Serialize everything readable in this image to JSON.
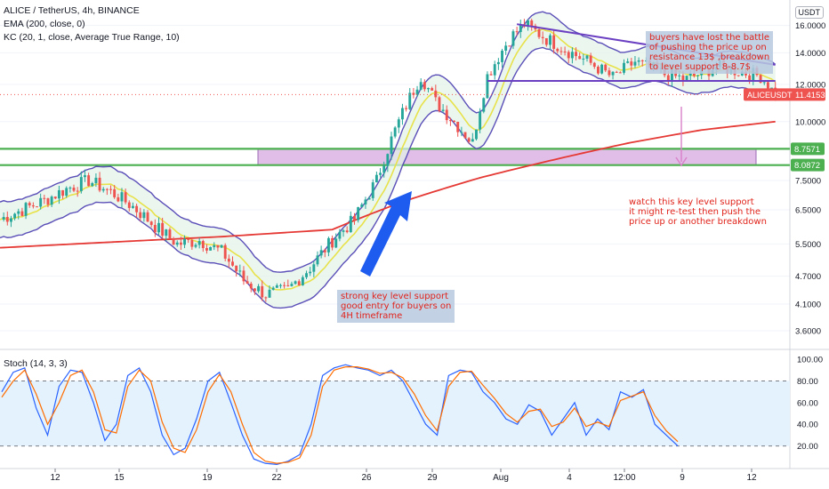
{
  "header": {
    "symbol_line": "ALICE / TetherUS, 4h, BINANCE",
    "ema_line": "EMA (200, close, 0)",
    "kc_line": "KC (20, 1, close, Average True Range, 10)",
    "stoch_line": "Stoch (14, 3, 3)",
    "currency": "USDT"
  },
  "notes": {
    "top_right": "buyers have lost the battle\nof pushing the price up on\nresistance 13$ ,breakdown\nto level support 8-8.7$",
    "middle_right": "watch this key level support\nit might re-test then push the\nprice up or another breakdown",
    "bottom_center": "strong key level support\ngood entry for buyers on\n4H timeframe"
  },
  "colors": {
    "bull": "#26a69a",
    "bear": "#ef5350",
    "ema": "#e53935",
    "kc_band": "#5b4fb8",
    "kc_mid": "#e8e24a",
    "kc_fill": "#e3f2e8",
    "support_line": "#4caf50",
    "zone_fill": "#e1bee7",
    "trendline": "#6a3fc2",
    "arrow_blue": "#1e5bef",
    "arrow_pink": "#d980c9",
    "stoch_k": "#2962ff",
    "stoch_d": "#ff6d00",
    "stoch_bg": "#e3f2fd",
    "price_tag": "#ef5350",
    "level_tag": "#4caf50"
  },
  "chart_data": [
    {
      "type": "candlestick",
      "symbol": "ALICEUSDT",
      "price_axis_ticks": [
        "16.0000",
        "14.0000",
        "12.0000",
        "10.0000",
        "8.7571",
        "8.0872",
        "7.5000",
        "6.5000",
        "5.5000",
        "4.7000",
        "4.1000",
        "3.6000"
      ],
      "ylim": [
        3.3,
        17.5
      ],
      "log_scale": true,
      "x_ticks": [
        "12",
        "15",
        "19",
        "22",
        "26",
        "29",
        "Aug",
        "4",
        "12:00",
        "9",
        "12"
      ],
      "last_price_label": "ALICEUSDT",
      "last_price": "11.4153",
      "support_levels": [
        "8.7571",
        "8.0872"
      ],
      "candles_close_path": [
        [
          0,
          6.2
        ],
        [
          6,
          6.5
        ],
        [
          12,
          6.8
        ],
        [
          18,
          7.2
        ],
        [
          24,
          7.5
        ],
        [
          30,
          7.1
        ],
        [
          36,
          6.6
        ],
        [
          42,
          6.0
        ],
        [
          48,
          5.5
        ],
        [
          54,
          5.6
        ],
        [
          60,
          5.3
        ],
        [
          66,
          4.6
        ],
        [
          72,
          4.3
        ],
        [
          78,
          4.4
        ],
        [
          84,
          4.9
        ],
        [
          90,
          5.6
        ],
        [
          96,
          6.2
        ],
        [
          102,
          7.5
        ],
        [
          108,
          10.0
        ],
        [
          114,
          12.5
        ],
        [
          118,
          11.0
        ],
        [
          124,
          9.8
        ],
        [
          128,
          9.0
        ],
        [
          132,
          12.5
        ],
        [
          138,
          15.0
        ],
        [
          142,
          16.1
        ],
        [
          148,
          15.0
        ],
        [
          154,
          14.1
        ],
        [
          160,
          13.3
        ],
        [
          166,
          12.4
        ],
        [
          172,
          13.4
        ],
        [
          180,
          12.6
        ],
        [
          186,
          12.3
        ],
        [
          194,
          13.1
        ],
        [
          200,
          12.8
        ],
        [
          206,
          12.5
        ],
        [
          210,
          11.4
        ]
      ],
      "ema_200": [
        [
          0,
          5.4
        ],
        [
          60,
          5.7
        ],
        [
          90,
          5.9
        ],
        [
          110,
          6.8
        ],
        [
          130,
          7.6
        ],
        [
          150,
          8.3
        ],
        [
          170,
          9.0
        ],
        [
          190,
          9.6
        ],
        [
          210,
          10.0
        ]
      ]
    },
    {
      "type": "line",
      "title": "Stoch (14, 3, 3)",
      "y_ticks": [
        "100.00",
        "80.00",
        "60.00",
        "40.00",
        "20.00"
      ],
      "ylim": [
        0,
        105
      ],
      "bands": [
        20,
        80
      ],
      "series": [
        {
          "name": "%K",
          "values": [
            70,
            88,
            92,
            55,
            30,
            75,
            90,
            88,
            60,
            25,
            40,
            85,
            92,
            70,
            30,
            12,
            18,
            45,
            80,
            88,
            60,
            30,
            8,
            4,
            3,
            6,
            12,
            40,
            85,
            92,
            95,
            92,
            90,
            85,
            90,
            80,
            60,
            40,
            30,
            85,
            90,
            88,
            70,
            60,
            45,
            40,
            58,
            52,
            30,
            45,
            60,
            30,
            45,
            35,
            70,
            65,
            72,
            40,
            30,
            20
          ]
        },
        {
          "name": "%D",
          "values": [
            65,
            80,
            90,
            68,
            40,
            60,
            85,
            90,
            70,
            35,
            32,
            75,
            90,
            80,
            42,
            18,
            14,
            35,
            70,
            86,
            70,
            40,
            14,
            6,
            4,
            5,
            9,
            30,
            75,
            90,
            93,
            93,
            91,
            87,
            88,
            83,
            68,
            48,
            34,
            75,
            88,
            89,
            76,
            64,
            50,
            42,
            52,
            54,
            38,
            42,
            55,
            38,
            42,
            38,
            62,
            66,
            70,
            48,
            34,
            24
          ]
        }
      ]
    }
  ]
}
